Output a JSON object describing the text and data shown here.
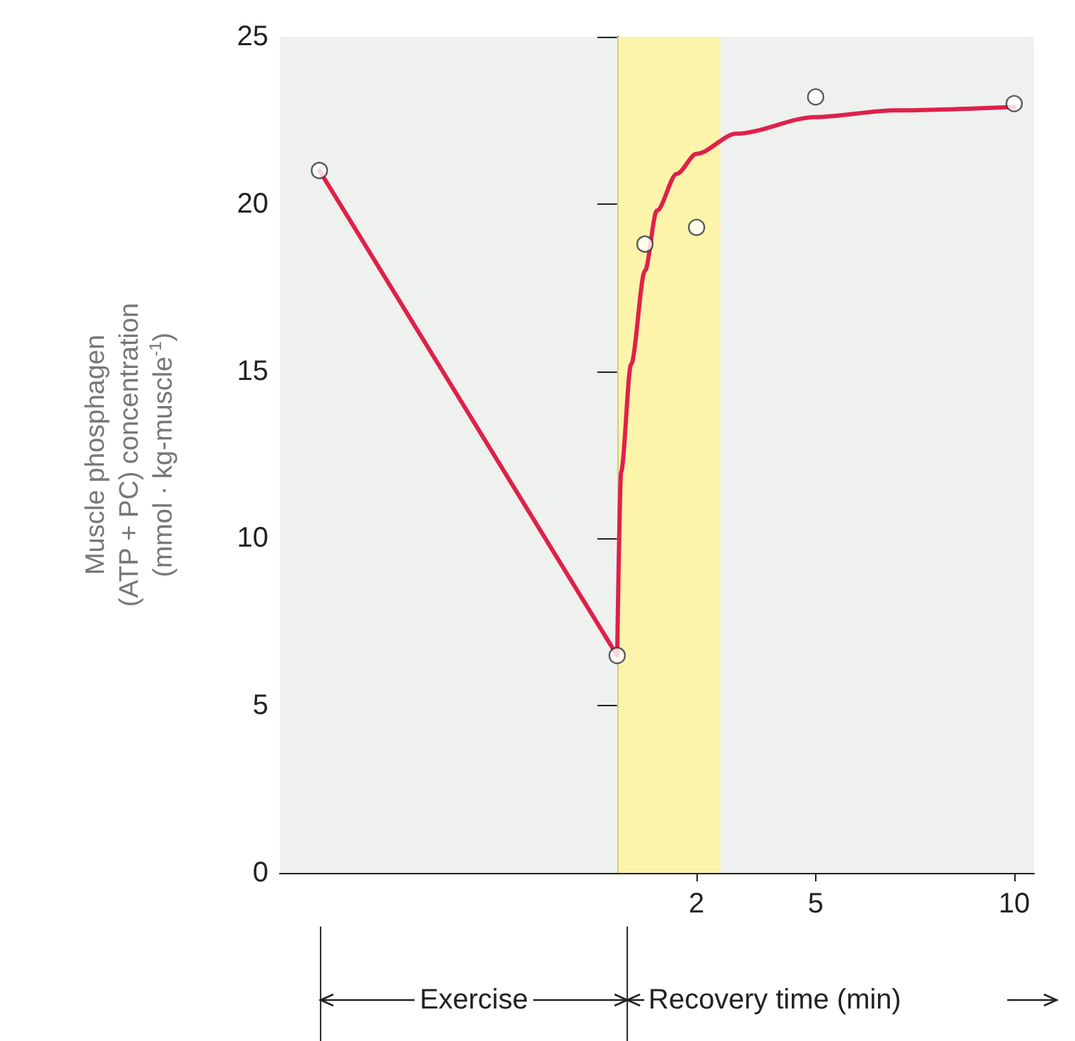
{
  "chart_data": {
    "type": "line",
    "ylabel": "Muscle phosphagen\n(ATP + PC) concentration\n(mmol · kg-muscle$^{-1}$)",
    "xlim": [
      -8.5,
      10.5
    ],
    "xticks": [
      2,
      5,
      10
    ],
    "ylim": [
      0,
      25
    ],
    "yticks": [
      0,
      5,
      10,
      15,
      20,
      25
    ],
    "series": [
      {
        "color": "#e0204a",
        "x": [
          -7.5,
          0
        ],
        "values": [
          21,
          6.5
        ]
      },
      {
        "color": "#e0204a",
        "x": [
          0,
          0.1,
          0.35,
          0.7,
          1,
          1.5,
          2,
          3,
          5,
          7,
          10
        ],
        "values": [
          6.5,
          12,
          15.2,
          18,
          19.8,
          20.9,
          21.5,
          22.1,
          22.6,
          22.8,
          22.9
        ]
      },
      {
        "type": "scatter",
        "marker": "circle",
        "color": "#333333",
        "x": [
          -7.5,
          0,
          0.7,
          2,
          5,
          10
        ],
        "values": [
          21,
          6.5,
          18.8,
          19.3,
          23.2,
          23
        ]
      }
    ],
    "bands": [
      {
        "axis": "x",
        "from": 0,
        "to": 2.6,
        "color": "#fff59a"
      }
    ],
    "annotations": [
      "Exercise",
      "Recovery time (min)"
    ],
    "grid": false
  }
}
